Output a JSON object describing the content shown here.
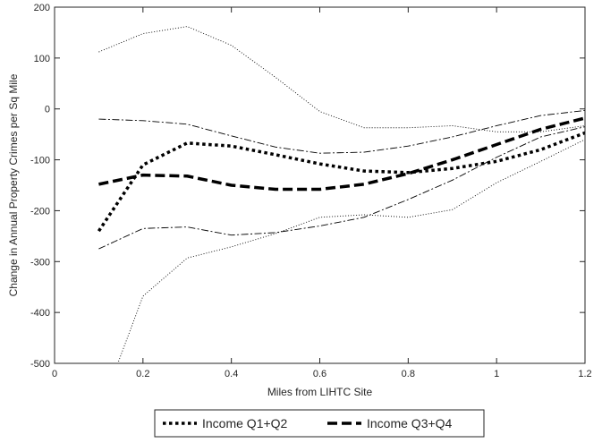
{
  "chart_data": {
    "type": "line",
    "title": "",
    "xlabel": "Miles from LIHTC Site",
    "ylabel": "Change in Annual Property Crimes per Sq Mile",
    "xlim": [
      0,
      1.2
    ],
    "ylim": [
      -500,
      200
    ],
    "xticks": [
      0,
      0.2,
      0.4,
      0.6,
      0.8,
      1,
      1.2
    ],
    "xtick_labels": [
      "0",
      "0.2",
      "0.4",
      "0.6",
      "0.8",
      "1",
      "1.2"
    ],
    "yticks": [
      -500,
      -400,
      -300,
      -200,
      -100,
      0,
      100,
      200
    ],
    "ytick_labels": [
      "-500",
      "-400",
      "-300",
      "-200",
      "-100",
      "0",
      "100",
      "200"
    ],
    "grid": false,
    "legend_position": "bottom-center-outside",
    "x": [
      0.1,
      0.2,
      0.3,
      0.4,
      0.5,
      0.6,
      0.7,
      0.8,
      0.9,
      1.0,
      1.1,
      1.2
    ],
    "series": [
      {
        "name": "Income Q1+Q2",
        "role": "estimate",
        "style": "dotted-thick",
        "values": [
          -240,
          -110,
          -67,
          -73,
          -90,
          -108,
          -122,
          -125,
          -117,
          -103,
          -80,
          -47
        ]
      },
      {
        "name": "Income Q3+Q4",
        "role": "estimate",
        "style": "dashed-thick",
        "values": [
          -148,
          -130,
          -132,
          -150,
          -158,
          -158,
          -148,
          -127,
          -100,
          -70,
          -40,
          -18
        ]
      },
      {
        "role": "q1q2-upper-bound",
        "style": "dotted-thin",
        "values": [
          112,
          148,
          162,
          125,
          62,
          -5,
          -37,
          -37,
          -33,
          -45,
          -45,
          -33
        ]
      },
      {
        "role": "q1q2-lower-bound",
        "style": "dotted-thin",
        "values": [
          -600,
          -368,
          -293,
          -271,
          -245,
          -213,
          -208,
          -213,
          -198,
          -145,
          -103,
          -60
        ]
      },
      {
        "role": "q3q4-upper-bound",
        "style": "dashdot-thin",
        "values": [
          -20,
          -23,
          -30,
          -53,
          -75,
          -87,
          -85,
          -73,
          -55,
          -33,
          -13,
          -3
        ]
      },
      {
        "role": "q3q4-lower-bound",
        "style": "dashdot-thin",
        "values": [
          -275,
          -235,
          -232,
          -248,
          -243,
          -230,
          -213,
          -178,
          -140,
          -95,
          -55,
          -35
        ]
      }
    ]
  }
}
